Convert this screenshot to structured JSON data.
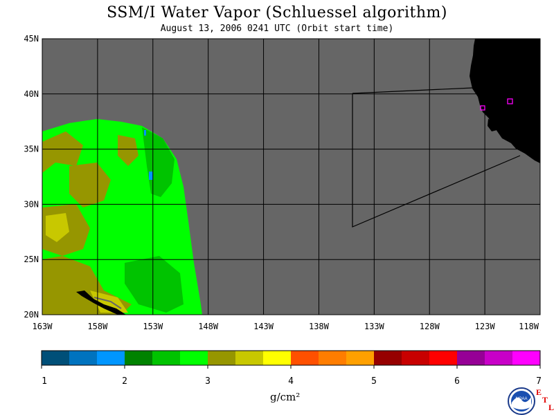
{
  "title": "SSM/I Water Vapor (Schluessel algorithm)",
  "subtitle": "August 13, 2006  0241 UTC  (Orbit start time)",
  "map": {
    "lat_labels": [
      "45N",
      "40N",
      "35N",
      "30N",
      "25N",
      "20N"
    ],
    "lon_labels": [
      "163W",
      "158W",
      "153W",
      "148W",
      "143W",
      "138W",
      "133W",
      "128W",
      "123W",
      "118W"
    ],
    "lat_range": [
      20,
      45
    ],
    "lon_range": [
      -163,
      -118
    ],
    "ocean_color": "#666666",
    "land_color": "#000000",
    "stations": [
      {
        "id": "CZD",
        "color": "#ff00ff"
      },
      {
        "id": "BLU",
        "color": "#ff00ff"
      }
    ]
  },
  "colorbar": {
    "ticks": [
      "1",
      "2",
      "3",
      "4",
      "5",
      "6",
      "7"
    ],
    "colors": [
      "#004f78",
      "#0073bf",
      "#0096ff",
      "#008200",
      "#00c300",
      "#00ff00",
      "#969600",
      "#c8c800",
      "#ffff00",
      "#ff5000",
      "#ff7d00",
      "#ffa000",
      "#960000",
      "#c80000",
      "#ff0000",
      "#960096",
      "#c800c8",
      "#ff00ff"
    ],
    "unit": "g/cm²"
  },
  "logo": {
    "name": "NOAA",
    "etl": [
      "E",
      "T",
      "L"
    ]
  }
}
